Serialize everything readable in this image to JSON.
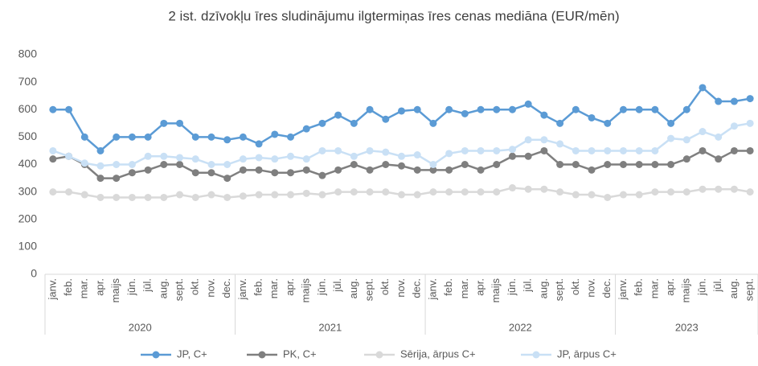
{
  "chart_data": {
    "type": "line",
    "title": "2 ist. dzīvokļu īres sludinājumu ilgtermiņas īres cenas mediāna (EUR/mēn)",
    "categories": [
      "janv.",
      "feb.",
      "mar.",
      "apr.",
      "maijs",
      "jūn.",
      "jūl.",
      "aug.",
      "sept.",
      "okt.",
      "nov.",
      "dec.",
      "janv.",
      "feb.",
      "mar.",
      "apr.",
      "maijs",
      "jūn.",
      "jūl.",
      "aug.",
      "sept.",
      "okt.",
      "nov.",
      "dec.",
      "janv.",
      "feb.",
      "mar.",
      "apr.",
      "maijs",
      "jūn.",
      "jūl.",
      "aug.",
      "sept.",
      "okt.",
      "nov.",
      "dec.",
      "janv.",
      "feb.",
      "mar.",
      "apr.",
      "maijs",
      "jūn.",
      "jūl.",
      "aug.",
      "sept."
    ],
    "category_groups": [
      {
        "label": "2020",
        "size": 12
      },
      {
        "label": "2021",
        "size": 12
      },
      {
        "label": "2022",
        "size": 12
      },
      {
        "label": "2023",
        "size": 9
      }
    ],
    "series": [
      {
        "name": "JP, C+",
        "color": "#5b9bd5",
        "values": [
          600,
          600,
          500,
          450,
          500,
          500,
          500,
          550,
          550,
          500,
          500,
          490,
          500,
          475,
          510,
          500,
          530,
          550,
          580,
          550,
          600,
          565,
          595,
          600,
          550,
          600,
          585,
          600,
          600,
          600,
          620,
          580,
          550,
          600,
          570,
          550,
          600,
          600,
          600,
          550,
          600,
          680,
          630,
          630,
          640
        ]
      },
      {
        "name": "PK, C+",
        "color": "#7f7f7f",
        "values": [
          420,
          430,
          400,
          350,
          350,
          370,
          380,
          400,
          400,
          370,
          370,
          350,
          380,
          380,
          370,
          370,
          380,
          360,
          380,
          400,
          380,
          400,
          395,
          380,
          380,
          380,
          400,
          380,
          400,
          430,
          430,
          450,
          400,
          400,
          380,
          400,
          400,
          400,
          400,
          400,
          420,
          450,
          420,
          450,
          450
        ]
      },
      {
        "name": "Sērija, ārpus C+",
        "color": "#d9d9d9",
        "values": [
          300,
          300,
          290,
          280,
          280,
          280,
          280,
          280,
          290,
          280,
          290,
          280,
          285,
          290,
          290,
          290,
          295,
          290,
          300,
          300,
          300,
          300,
          290,
          290,
          300,
          300,
          300,
          300,
          300,
          315,
          310,
          310,
          300,
          290,
          290,
          280,
          290,
          290,
          300,
          300,
          300,
          310,
          310,
          310,
          300
        ]
      },
      {
        "name": "JP, ārpus C+",
        "color": "#c9e0f5",
        "values": [
          450,
          430,
          405,
          395,
          400,
          400,
          430,
          430,
          425,
          420,
          400,
          400,
          420,
          425,
          420,
          430,
          420,
          450,
          450,
          430,
          450,
          445,
          430,
          435,
          400,
          440,
          450,
          450,
          450,
          455,
          490,
          490,
          475,
          450,
          450,
          450,
          450,
          450,
          450,
          495,
          490,
          520,
          500,
          540,
          550
        ]
      }
    ],
    "ylim": [
      0,
      800
    ],
    "yticks": [
      0,
      100,
      200,
      300,
      400,
      500,
      600,
      700,
      800
    ],
    "grid": false,
    "legend": "bottom"
  }
}
